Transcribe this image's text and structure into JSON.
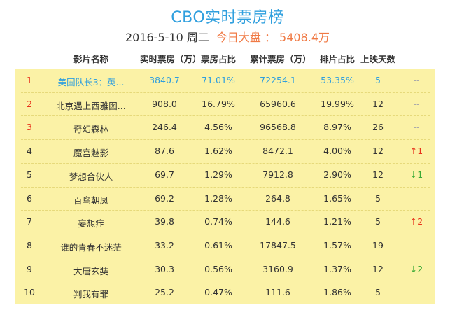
{
  "title": "CBO实时票房榜",
  "date": "2016-5-10 周二",
  "market_label": "今日大盘 ： 5408.4万",
  "headers": [
    "影片名称",
    "实时票房（万）",
    "票房占比",
    "累计票房（万）",
    "排片占比",
    "上映天数"
  ],
  "rows": [
    {
      "rank": "1",
      "name": "美国队长3：英...",
      "realtime": "3840.7",
      "share": "71.01%",
      "total": "72254.1",
      "screen": "53.35%",
      "days": "5",
      "trend": "--"
    },
    {
      "rank": "2",
      "name": "北京遇上西雅图...",
      "realtime": "908.0",
      "share": "16.79%",
      "total": "65960.6",
      "screen": "19.99%",
      "days": "12",
      "trend": "--"
    },
    {
      "rank": "3",
      "name": "奇幻森林",
      "realtime": "246.4",
      "share": "4.56%",
      "total": "96568.8",
      "screen": "8.97%",
      "days": "26",
      "trend": "--"
    },
    {
      "rank": "4",
      "name": "魔宫魅影",
      "realtime": "87.6",
      "share": "1.62%",
      "total": "8472.1",
      "screen": "4.00%",
      "days": "12",
      "trend": "↑1"
    },
    {
      "rank": "5",
      "name": "梦想合伙人",
      "realtime": "69.7",
      "share": "1.29%",
      "total": "7912.8",
      "screen": "2.90%",
      "days": "12",
      "trend": "↓1"
    },
    {
      "rank": "6",
      "name": "百鸟朝凤",
      "realtime": "69.2",
      "share": "1.28%",
      "total": "264.8",
      "screen": "1.65%",
      "days": "5",
      "trend": "--"
    },
    {
      "rank": "7",
      "name": "妄想症",
      "realtime": "39.8",
      "share": "0.74%",
      "total": "144.6",
      "screen": "1.21%",
      "days": "5",
      "trend": "↑2"
    },
    {
      "rank": "8",
      "name": "谁的青春不迷茫",
      "realtime": "33.2",
      "share": "0.61%",
      "total": "17847.5",
      "screen": "1.57%",
      "days": "19",
      "trend": "--"
    },
    {
      "rank": "9",
      "name": "大唐玄奘",
      "realtime": "30.3",
      "share": "0.56%",
      "total": "3160.9",
      "screen": "1.37%",
      "days": "12",
      "trend": "↓2"
    },
    {
      "rank": "10",
      "name": "判我有罪",
      "realtime": "25.2",
      "share": "0.47%",
      "total": "111.6",
      "screen": "1.86%",
      "days": "5",
      "trend": "--"
    }
  ],
  "colors": {
    "title": "#2f9fde",
    "market": "#f07a45",
    "table_bg": "#fbf2a6",
    "up": "#e8321b",
    "down": "#3aaa35",
    "rank_top": "#e8321b"
  }
}
